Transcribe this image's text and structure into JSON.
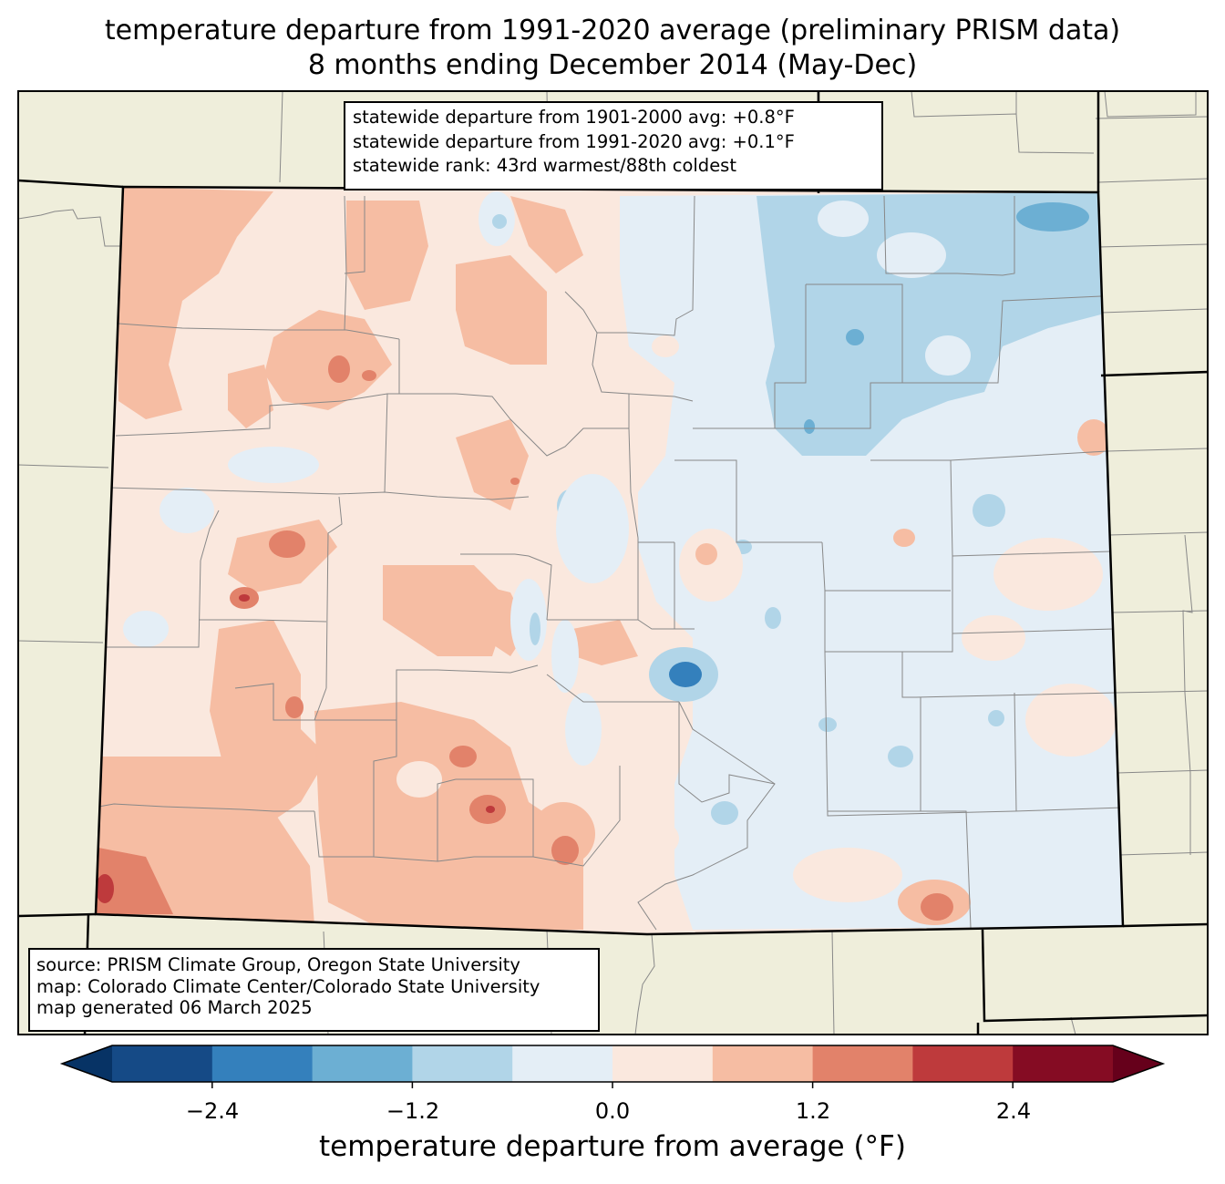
{
  "title": {
    "line1": "temperature departure from 1991-2020 average (preliminary PRISM data)",
    "line2": "8 months ending December 2014 (May-Dec)"
  },
  "stats": {
    "line1": "statewide departure from 1901-2000 avg: +0.8°F",
    "line2": "statewide departure from 1991-2020 avg: +0.1°F",
    "line3": "statewide rank: 43rd warmest/88th coldest"
  },
  "source": {
    "line1": "source: PRISM Climate Group, Oregon State University",
    "line2": "map: Colorado Climate Center/Colorado State University",
    "line3": "map generated 06 March 2025"
  },
  "colorbar": {
    "label": "temperature departure from average (°F)",
    "ticks": [
      "−2.4",
      "−1.2",
      "0.0",
      "1.2",
      "2.4"
    ],
    "bins": [
      {
        "from": -3.0,
        "to": -2.4,
        "color": "#154a86"
      },
      {
        "from": -2.4,
        "to": -1.8,
        "color": "#3480bc"
      },
      {
        "from": -1.8,
        "to": -1.2,
        "color": "#6cafd3"
      },
      {
        "from": -1.2,
        "to": -0.6,
        "color": "#b1d5e8"
      },
      {
        "from": -0.6,
        "to": 0.0,
        "color": "#e4eef6"
      },
      {
        "from": 0.0,
        "to": 0.6,
        "color": "#fae8de"
      },
      {
        "from": 0.6,
        "to": 1.2,
        "color": "#f6bda3"
      },
      {
        "from": 1.2,
        "to": 1.8,
        "color": "#e2826a"
      },
      {
        "from": 1.8,
        "to": 2.4,
        "color": "#be3a3c"
      },
      {
        "from": 2.4,
        "to": 3.0,
        "color": "#850c23"
      }
    ],
    "under_color": "#073365",
    "over_color": "#66001b"
  },
  "colors": {
    "land_outside": "#efeedb",
    "county_lines": "#888888",
    "state_lines": "#000000"
  }
}
